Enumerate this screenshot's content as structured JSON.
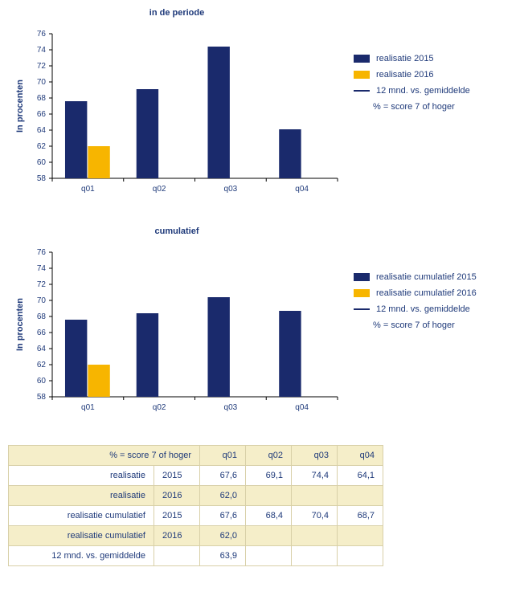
{
  "chart1": {
    "title": "in de periode",
    "type": "bar",
    "y_label": "In procenten",
    "ylim": [
      58,
      76
    ],
    "ytick_step": 2,
    "categories": [
      "q01",
      "q02",
      "q03",
      "q04"
    ],
    "series": [
      {
        "name": "realisatie 2015",
        "color": "#1a2a6c",
        "values": [
          67.6,
          69.1,
          74.4,
          64.1
        ]
      },
      {
        "name": "realisatie 2016",
        "color": "#f7b500",
        "values": [
          62.0,
          null,
          null,
          null
        ]
      }
    ],
    "legend_line": {
      "label": "12 mnd. vs. gemiddelde",
      "color": "#1a2a6c"
    },
    "legend_note": "% = score 7 of hoger",
    "bar_width": 0.32,
    "background_color": "#ffffff",
    "grid": false
  },
  "chart2": {
    "title": "cumulatief",
    "type": "bar",
    "y_label": "In procenten",
    "ylim": [
      58,
      76
    ],
    "ytick_step": 2,
    "categories": [
      "q01",
      "q02",
      "q03",
      "q04"
    ],
    "series": [
      {
        "name": "realisatie cumulatief 2015",
        "color": "#1a2a6c",
        "values": [
          67.6,
          68.4,
          70.4,
          68.7
        ]
      },
      {
        "name": "realisatie cumulatief 2016",
        "color": "#f7b500",
        "values": [
          62.0,
          null,
          null,
          null
        ]
      }
    ],
    "legend_line": {
      "label": "12 mnd. vs. gemiddelde",
      "color": "#1a2a6c"
    },
    "legend_note": "% = score 7 of hoger",
    "bar_width": 0.32,
    "background_color": "#ffffff",
    "grid": false
  },
  "table": {
    "header_label": "% = score 7 of  hoger",
    "columns": [
      "q01",
      "q02",
      "q03",
      "q04"
    ],
    "rows": [
      {
        "label": "realisatie",
        "year": "2015",
        "values": [
          "67,6",
          "69,1",
          "74,4",
          "64,1"
        ],
        "shade": "odd"
      },
      {
        "label": "realisatie",
        "year": "2016",
        "values": [
          "62,0",
          "",
          "",
          ""
        ],
        "shade": "even"
      },
      {
        "label": "realisatie cumulatief",
        "year": "2015",
        "values": [
          "67,6",
          "68,4",
          "70,4",
          "68,7"
        ],
        "shade": "odd"
      },
      {
        "label": "realisatie cumulatief",
        "year": "2016",
        "values": [
          "62,0",
          "",
          "",
          ""
        ],
        "shade": "even"
      },
      {
        "label": "12 mnd. vs. gemiddelde",
        "year": "",
        "values": [
          "63,9",
          "",
          "",
          ""
        ],
        "shade": "odd"
      }
    ]
  }
}
